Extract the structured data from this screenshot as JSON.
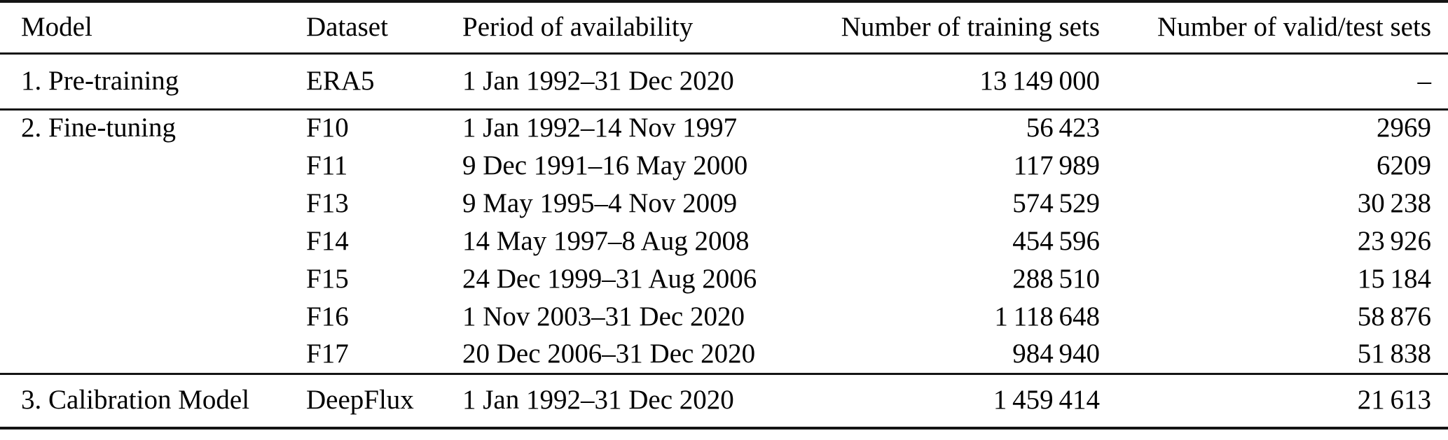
{
  "table": {
    "columns": [
      {
        "label": "Model",
        "align": "left"
      },
      {
        "label": "Dataset",
        "align": "left"
      },
      {
        "label": "Period of availability",
        "align": "left"
      },
      {
        "label": "Number of training sets",
        "align": "right"
      },
      {
        "label": "Number of valid/test sets",
        "align": "right"
      }
    ],
    "sections": {
      "pretraining": {
        "rows": [
          {
            "model": "1. Pre-training",
            "dataset": "ERA5",
            "period": "1 Jan 1992–31 Dec 2020",
            "training": "13 149 000",
            "validtest": "–"
          }
        ]
      },
      "finetuning": {
        "rows": [
          {
            "model": "2. Fine-tuning",
            "dataset": "F10",
            "period": "1 Jan 1992–14 Nov 1997",
            "training": "56 423",
            "validtest": "2969"
          },
          {
            "model": "",
            "dataset": "F11",
            "period": "9 Dec 1991–16 May 2000",
            "training": "117 989",
            "validtest": "6209"
          },
          {
            "model": "",
            "dataset": "F13",
            "period": "9 May 1995–4 Nov 2009",
            "training": "574 529",
            "validtest": "30 238"
          },
          {
            "model": "",
            "dataset": "F14",
            "period": "14 May 1997–8 Aug 2008",
            "training": "454 596",
            "validtest": "23 926"
          },
          {
            "model": "",
            "dataset": "F15",
            "period": "24 Dec 1999–31 Aug 2006",
            "training": "288 510",
            "validtest": "15 184"
          },
          {
            "model": "",
            "dataset": "F16",
            "period": "1 Nov 2003–31 Dec 2020",
            "training": "1 118 648",
            "validtest": "58 876"
          },
          {
            "model": "",
            "dataset": "F17",
            "period": "20 Dec 2006–31 Dec 2020",
            "training": "984 940",
            "validtest": "51 838"
          }
        ]
      },
      "calibration": {
        "rows": [
          {
            "model": "3. Calibration Model",
            "dataset": "DeepFlux",
            "period": "1 Jan 1992–31 Dec 2020",
            "training": "1 459 414",
            "validtest": "21 613"
          }
        ]
      }
    }
  },
  "chart_data": {
    "type": "table",
    "columns": [
      "Model",
      "Dataset",
      "Period of availability",
      "Number of training sets",
      "Number of valid/test sets"
    ],
    "rows": [
      [
        "1. Pre-training",
        "ERA5",
        "1 Jan 1992–31 Dec 2020",
        13149000,
        null
      ],
      [
        "2. Fine-tuning",
        "F10",
        "1 Jan 1992–14 Nov 1997",
        56423,
        2969
      ],
      [
        "2. Fine-tuning",
        "F11",
        "9 Dec 1991–16 May 2000",
        117989,
        6209
      ],
      [
        "2. Fine-tuning",
        "F13",
        "9 May 1995–4 Nov 2009",
        574529,
        30238
      ],
      [
        "2. Fine-tuning",
        "F14",
        "14 May 1997–8 Aug 2008",
        454596,
        23926
      ],
      [
        "2. Fine-tuning",
        "F15",
        "24 Dec 1999–31 Aug 2006",
        288510,
        15184
      ],
      [
        "2. Fine-tuning",
        "F16",
        "1 Nov 2003–31 Dec 2020",
        1118648,
        58876
      ],
      [
        "2. Fine-tuning",
        "F17",
        "20 Dec 2006–31 Dec 2020",
        984940,
        51838
      ],
      [
        "3. Calibration Model",
        "DeepFlux",
        "1 Jan 1992–31 Dec 2020",
        1459414,
        21613
      ]
    ]
  }
}
